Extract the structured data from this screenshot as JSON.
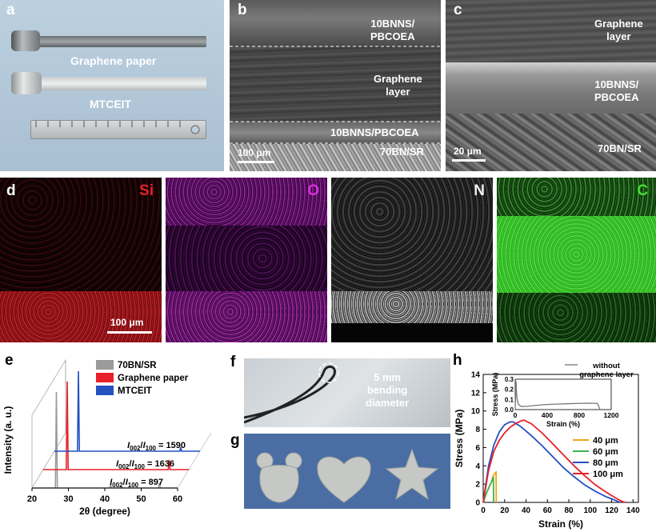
{
  "panels": {
    "a": {
      "label": "a",
      "texts": [
        "Graphene paper",
        "MTCEIT"
      ]
    },
    "b": {
      "label": "b",
      "layers": [
        "10BNNS/\nPBCOEA",
        "Graphene\nlayer",
        "10BNNS/PBCOEA",
        "70BN/SR"
      ],
      "scale": "100 μm"
    },
    "c": {
      "label": "c",
      "layers": [
        "Graphene\nlayer",
        "10BNNS/\nPBCOEA",
        "70BN/SR"
      ],
      "scale": "20 μm"
    },
    "d": {
      "label": "d",
      "maps": [
        {
          "element": "Si",
          "color": "#e8202a"
        },
        {
          "element": "O",
          "color": "#d92ee0"
        },
        {
          "element": "N",
          "color": "#f2f2f2"
        },
        {
          "element": "C",
          "color": "#44dd33"
        }
      ],
      "scale": "100 μm"
    },
    "e": {
      "label": "e"
    },
    "f": {
      "label": "f",
      "text": "5 mm\nbending\ndiameter"
    },
    "g": {
      "label": "g"
    },
    "h": {
      "label": "h"
    }
  },
  "chart_data": [
    {
      "type": "line",
      "panel": "e",
      "xlabel": "2θ (degree)",
      "ylabel": "Intensity (a. u.)",
      "xlim": [
        20,
        60
      ],
      "xticks": [
        20,
        30,
        40,
        50,
        60
      ],
      "series": [
        {
          "name": "70BN/SR",
          "color": "#9a9a9a",
          "peaks": [
            [
              26.7,
              1.0
            ],
            [
              41.6,
              0.04
            ],
            [
              55.0,
              0.05
            ]
          ],
          "ratio": "= 897"
        },
        {
          "name": "Graphene paper",
          "color": "#e8202a",
          "peaks": [
            [
              26.6,
              1.0
            ],
            [
              54.6,
              0.11
            ]
          ],
          "ratio": "= 1636"
        },
        {
          "name": "MTCEIT",
          "color": "#2450c0",
          "peaks": [
            [
              26.6,
              1.0
            ],
            [
              54.7,
              0.05
            ]
          ],
          "ratio": "= 1590"
        }
      ],
      "ratio_label": "I002/I100"
    },
    {
      "type": "line",
      "panel": "h",
      "xlabel": "Strain (%)",
      "ylabel": "Stress (MPa)",
      "xlim": [
        0,
        145
      ],
      "ylim": [
        0,
        14
      ],
      "xticks": [
        0,
        20,
        40,
        60,
        80,
        100,
        120,
        140
      ],
      "yticks": [
        0,
        2,
        4,
        6,
        8,
        10,
        12,
        14
      ],
      "series": [
        {
          "name": "40 μm",
          "color": "#f2a516",
          "x": [
            0,
            3,
            6,
            8,
            9,
            10,
            11,
            12,
            12.2
          ],
          "y": [
            0,
            1.0,
            1.8,
            2.3,
            2.8,
            3.0,
            3.2,
            3.3,
            0
          ]
        },
        {
          "name": "60 μm",
          "color": "#3db54a",
          "x": [
            0,
            3,
            6,
            8,
            9,
            9.5,
            9.7
          ],
          "y": [
            0,
            1.0,
            1.8,
            2.3,
            2.6,
            2.8,
            0
          ]
        },
        {
          "name": "80 μm",
          "color": "#2450c0",
          "x": [
            0,
            5,
            10,
            15,
            20,
            25,
            28,
            35,
            45,
            55,
            65,
            75,
            85,
            95,
            105,
            115,
            122,
            126,
            128
          ],
          "y": [
            0,
            4.0,
            6.3,
            7.7,
            8.5,
            8.8,
            8.8,
            8.3,
            7.3,
            6.2,
            5.0,
            3.8,
            2.8,
            1.9,
            1.2,
            0.6,
            0.3,
            0.1,
            0
          ]
        },
        {
          "name": "100 μm",
          "color": "#e8202a",
          "x": [
            0,
            5,
            10,
            15,
            20,
            25,
            30,
            35,
            38,
            45,
            55,
            65,
            75,
            85,
            95,
            105,
            115,
            125,
            130,
            133
          ],
          "y": [
            0,
            3.5,
            5.6,
            6.8,
            7.6,
            8.2,
            8.6,
            8.9,
            9.0,
            8.6,
            7.6,
            6.4,
            5.2,
            4.0,
            2.9,
            1.9,
            1.1,
            0.4,
            0.1,
            0
          ]
        }
      ],
      "inset": {
        "name": "without\ngraphene layer",
        "color": "#777777",
        "xlabel": "Strain (%)",
        "ylabel": "Stress (MPa)",
        "xlim": [
          0,
          1200
        ],
        "ylim": [
          0,
          0.3
        ],
        "xticks": [
          0,
          400,
          800,
          1200
        ],
        "yticks": [
          0.0,
          0.1,
          0.2,
          0.3
        ],
        "x": [
          0,
          10,
          20,
          40,
          80,
          150,
          250,
          350,
          450,
          550,
          650,
          750,
          850,
          950,
          1030,
          1060
        ],
        "y": [
          0,
          0.28,
          0.12,
          0.05,
          0.03,
          0.032,
          0.04,
          0.048,
          0.052,
          0.055,
          0.058,
          0.06,
          0.062,
          0.063,
          0.06,
          0.0
        ]
      }
    }
  ]
}
